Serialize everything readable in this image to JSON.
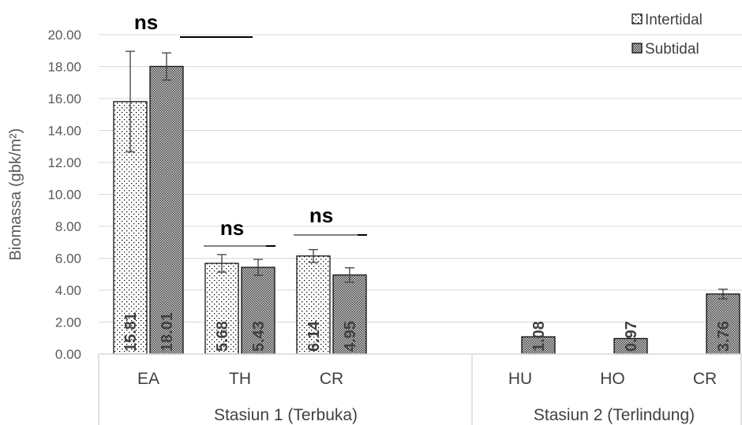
{
  "chart_data": {
    "type": "bar",
    "ylabel": "Biomassa (gbk/m²)",
    "ylim": [
      0,
      20
    ],
    "y_ticks": [
      "0.00",
      "2.00",
      "4.00",
      "6.00",
      "8.00",
      "10.00",
      "12.00",
      "14.00",
      "16.00",
      "18.00",
      "20.00"
    ],
    "grid": true,
    "legend_position": "top-right",
    "groups": [
      {
        "name": "Stasiun 1 (Terbuka)",
        "categories": [
          "EA",
          "TH",
          "CR"
        ]
      },
      {
        "name": "Stasiun 2 (Terlindung)",
        "categories": [
          "HU",
          "HO",
          "CR"
        ]
      }
    ],
    "categories": [
      "EA",
      "TH",
      "CR",
      "HU",
      "HO",
      "CR"
    ],
    "series": [
      {
        "name": "Intertidal",
        "pattern": "dots",
        "values": [
          15.81,
          5.68,
          6.14,
          null,
          null,
          null
        ],
        "labels": [
          "15.81",
          "5.68",
          "6.14",
          "",
          "",
          ""
        ],
        "errors": [
          3.15,
          0.55,
          0.4,
          null,
          null,
          null
        ]
      },
      {
        "name": "Subtidal",
        "pattern": "dense-checker",
        "values": [
          18.01,
          5.43,
          4.95,
          1.08,
          0.97,
          3.76
        ],
        "labels": [
          "18.01",
          "5.43",
          "4.95",
          "1.08",
          "0.97",
          "3.76"
        ],
        "errors": [
          0.85,
          0.5,
          0.45,
          null,
          null,
          0.3
        ]
      }
    ],
    "annotations": [
      {
        "text": "ns",
        "category_index": 0
      },
      {
        "text": "ns",
        "category_index": 1
      },
      {
        "text": "ns",
        "category_index": 2
      }
    ],
    "colors": {
      "grid": "#d9d9d9",
      "bar_border": "#000000",
      "pattern_dark": "#404040",
      "text": "#404040"
    }
  }
}
